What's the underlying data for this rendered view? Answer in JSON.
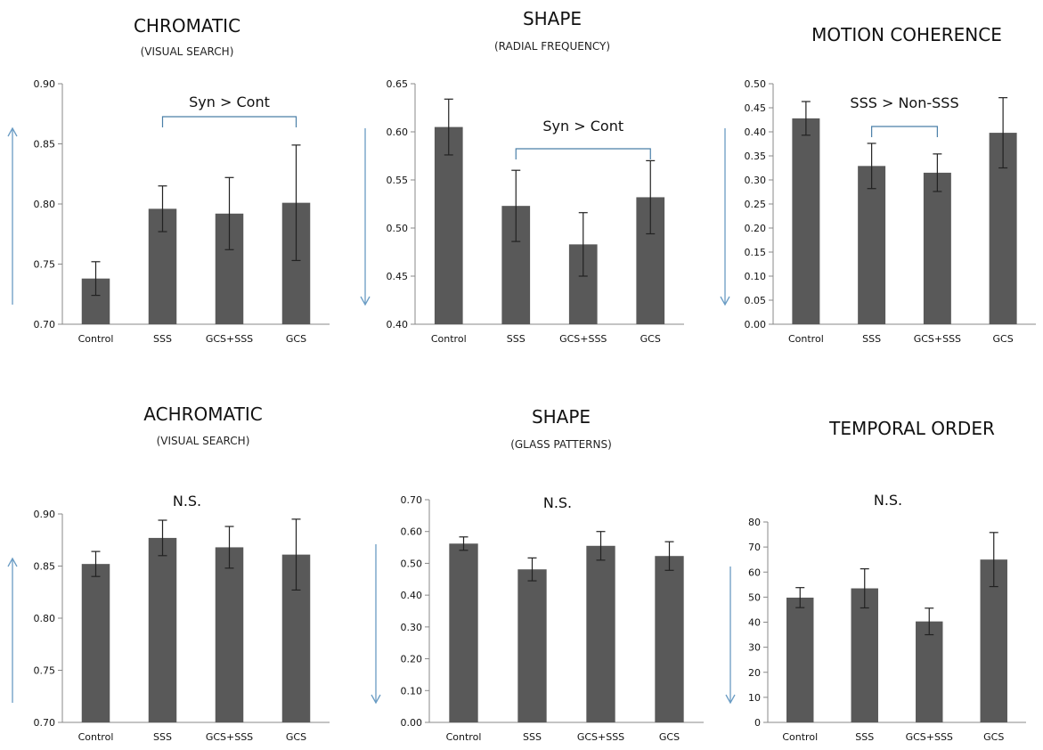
{
  "chart_data": [
    {
      "type": "bar",
      "title": "CHROMATIC",
      "subtitle": "(VISUAL SEARCH)",
      "categories": [
        "Control",
        "SSS",
        "GCS+SSS",
        "GCS"
      ],
      "values": [
        0.738,
        0.796,
        0.792,
        0.801
      ],
      "errors": [
        0.014,
        0.019,
        0.03,
        0.048
      ],
      "ylim": [
        0.7,
        0.9
      ],
      "ytick_step": 0.05,
      "ytick_labels": [
        "0.70",
        "0.75",
        "0.80",
        "0.85",
        "0.90"
      ],
      "annotation": "Syn > Cont",
      "bracket_categories": [
        "SSS",
        "GCS"
      ],
      "direction_arrow": "up",
      "arrow_color": "#6a9cc4",
      "bar_color": "#595959"
    },
    {
      "type": "bar",
      "title": "SHAPE",
      "subtitle": "(RADIAL FREQUENCY)",
      "categories": [
        "Control",
        "SSS",
        "GCS+SSS",
        "GCS"
      ],
      "values": [
        0.605,
        0.523,
        0.483,
        0.532
      ],
      "errors": [
        0.029,
        0.037,
        0.033,
        0.038
      ],
      "ylim": [
        0.4,
        0.65
      ],
      "ytick_step": 0.05,
      "ytick_labels": [
        "0.40",
        "0.45",
        "0.50",
        "0.55",
        "0.60",
        "0.65"
      ],
      "annotation": "Syn > Cont",
      "bracket_categories": [
        "SSS",
        "GCS"
      ],
      "direction_arrow": "down",
      "arrow_color": "#6a9cc4",
      "bar_color": "#595959"
    },
    {
      "type": "bar",
      "title": "MOTION COHERENCE",
      "subtitle": "",
      "categories": [
        "Control",
        "SSS",
        "GCS+SSS",
        "GCS"
      ],
      "values": [
        0.428,
        0.329,
        0.315,
        0.398
      ],
      "errors": [
        0.035,
        0.047,
        0.039,
        0.073
      ],
      "ylim": [
        0.0,
        0.5
      ],
      "ytick_step": 0.05,
      "ytick_labels": [
        "0.00",
        "0.05",
        "0.10",
        "0.15",
        "0.20",
        "0.25",
        "0.30",
        "0.35",
        "0.40",
        "0.45",
        "0.50"
      ],
      "annotation": "SSS > Non-SSS",
      "bracket_categories": [
        "SSS",
        "GCS+SSS"
      ],
      "direction_arrow": "down",
      "arrow_color": "#6a9cc4",
      "bar_color": "#595959"
    },
    {
      "type": "bar",
      "title": "ACHROMATIC",
      "subtitle": "(VISUAL SEARCH)",
      "categories": [
        "Control",
        "SSS",
        "GCS+SSS",
        "GCS"
      ],
      "values": [
        0.852,
        0.877,
        0.868,
        0.861
      ],
      "errors": [
        0.012,
        0.017,
        0.02,
        0.034
      ],
      "ylim": [
        0.7,
        0.9
      ],
      "ytick_step": 0.05,
      "ytick_labels": [
        "0.70",
        "0.75",
        "0.80",
        "0.85",
        "0.90"
      ],
      "annotation": "N.S.",
      "bracket_categories": [],
      "direction_arrow": "up",
      "arrow_color": "#6a9cc4",
      "bar_color": "#595959"
    },
    {
      "type": "bar",
      "title": "SHAPE",
      "subtitle": "(GLASS PATTERNS)",
      "categories": [
        "Control",
        "SSS",
        "GCS+SSS",
        "GCS"
      ],
      "values": [
        0.562,
        0.481,
        0.555,
        0.523
      ],
      "errors": [
        0.021,
        0.036,
        0.045,
        0.045
      ],
      "ylim": [
        0.0,
        0.7
      ],
      "ytick_step": 0.1,
      "ytick_labels": [
        "0.00",
        "0.10",
        "0.20",
        "0.30",
        "0.40",
        "0.50",
        "0.60",
        "0.70"
      ],
      "annotation": "N.S.",
      "bracket_categories": [],
      "direction_arrow": "down",
      "arrow_color": "#6a9cc4",
      "bar_color": "#595959"
    },
    {
      "type": "bar",
      "title": "TEMPORAL ORDER",
      "subtitle": "",
      "categories": [
        "Control",
        "SSS",
        "GCS+SSS",
        "GCS"
      ],
      "values": [
        49.8,
        53.5,
        40.3,
        65.0
      ],
      "errors": [
        4.0,
        7.8,
        5.3,
        10.8
      ],
      "ylim": [
        0,
        80
      ],
      "ytick_step": 10,
      "ytick_labels": [
        "0",
        "10",
        "20",
        "30",
        "40",
        "50",
        "60",
        "70",
        "80"
      ],
      "annotation": "N.S.",
      "bracket_categories": [],
      "direction_arrow": "down",
      "arrow_color": "#6a9cc4",
      "bar_color": "#595959"
    }
  ]
}
